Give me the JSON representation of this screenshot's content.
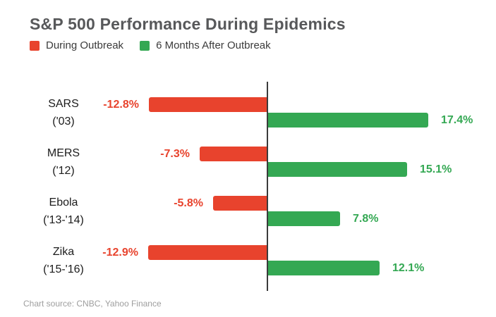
{
  "title": "S&P 500 Performance During Epidemics",
  "legend": [
    {
      "label": "During Outbreak",
      "color": "#e8432d"
    },
    {
      "label": "6 Months After Outbreak",
      "color": "#34a853"
    }
  ],
  "source_note": "Chart source: CNBC, Yahoo Finance",
  "colors": {
    "during_outbreak": "#e8432d",
    "after_outbreak": "#34a853",
    "title_text": "#57585a",
    "axis_line": "#3b3b3b",
    "source_text": "#9e9e9e"
  },
  "chart_data": {
    "type": "bar",
    "orientation": "horizontal",
    "title": "S&P 500 Performance During Epidemics",
    "xlabel": "",
    "ylabel": "",
    "grid": false,
    "legend_position": "top-left",
    "baseline_value": 0,
    "categories": [
      [
        "SARS",
        "('03)"
      ],
      [
        "MERS",
        "('12)"
      ],
      [
        "Ebola",
        "('13-'14)"
      ],
      [
        "Zika",
        "('15-'16)"
      ]
    ],
    "series": [
      {
        "name": "During Outbreak",
        "color": "#e8432d",
        "values": [
          -12.8,
          -7.3,
          -5.8,
          -12.9
        ],
        "labels": [
          "-12.8%",
          "-7.3%",
          "-5.8%",
          "-12.9%"
        ]
      },
      {
        "name": "6 Months After Outbreak",
        "color": "#34a853",
        "values": [
          17.4,
          15.1,
          7.8,
          12.1
        ],
        "labels": [
          "17.4%",
          "15.1%",
          "7.8%",
          "12.1%"
        ]
      }
    ]
  }
}
